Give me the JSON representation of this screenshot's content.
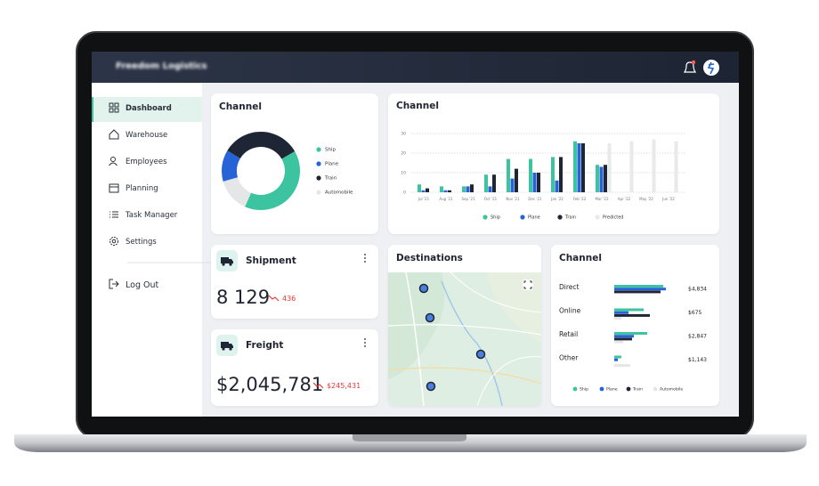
{
  "header": {
    "title": "Freedom Logistics"
  },
  "nav": {
    "items": [
      "Dashboard",
      "Warehouse",
      "Employees",
      "Planning",
      "Task Manager",
      "Settings"
    ],
    "logout": "Log Out"
  },
  "cards": {
    "shipment": {
      "title": "Shipment",
      "value": "8 129",
      "change": "436"
    },
    "freight": {
      "title": "Freight",
      "value": "$2,045,781",
      "change": "$245,431"
    },
    "destinations": {
      "title": "Destinations"
    }
  },
  "donut": {
    "type": "pie",
    "title": "Channel",
    "categories": [
      "Ship",
      "Plane",
      "Train",
      "Automobile"
    ],
    "values": [
      40,
      13,
      33,
      14
    ],
    "colors": [
      "#3cc3a0",
      "#2563d6",
      "#1e2535",
      "#e4e6e8"
    ]
  },
  "bar": {
    "type": "bar",
    "title": "Channel",
    "categories": [
      "Jul '21",
      "Aug '21",
      "Sep '21",
      "Oct '21",
      "Nov '21",
      "Dec '21",
      "Jan '22",
      "Feb '22",
      "Mar '22",
      "Apr '22",
      "May '22",
      "Jun '22"
    ],
    "series": [
      {
        "name": "Ship",
        "color": "#3cc3a0",
        "values": [
          4,
          3,
          3,
          9,
          17,
          17,
          18,
          26,
          14,
          null,
          null,
          null
        ]
      },
      {
        "name": "Plane",
        "color": "#2563d6",
        "values": [
          1,
          1,
          3,
          3,
          7,
          10,
          6,
          25,
          13,
          null,
          null,
          null
        ]
      },
      {
        "name": "Train",
        "color": "#1e2535",
        "values": [
          2,
          1,
          4,
          9,
          12,
          10,
          18,
          25,
          14,
          null,
          null,
          null
        ]
      },
      {
        "name": "Predicted",
        "color": "#e8e9eb",
        "values": [
          null,
          null,
          null,
          null,
          null,
          null,
          null,
          null,
          25,
          26,
          27,
          26
        ]
      }
    ],
    "ylim": [
      0,
      33
    ],
    "yticks": [
      0,
      10,
      20,
      30
    ],
    "grid": true
  },
  "hbar": {
    "type": "hbar",
    "title": "Channel",
    "categories": [
      "Direct",
      "Online",
      "Retail",
      "Other"
    ],
    "values": [
      4834,
      675,
      2847,
      1143
    ],
    "value_labels": [
      "$4,834",
      "$675",
      "$2,847",
      "$1,143"
    ],
    "series": [
      {
        "name": "Ship",
        "color": "#3cc3a0",
        "values": [
          55,
          33,
          37,
          8
        ]
      },
      {
        "name": "Plane",
        "color": "#2563d6",
        "values": [
          58,
          16,
          22,
          4
        ]
      },
      {
        "name": "Train",
        "color": "#1e2535",
        "values": [
          52,
          40,
          20,
          0
        ]
      },
      {
        "name": "Automobile",
        "color": "#e4e6e8",
        "values": [
          0,
          8,
          10,
          18
        ]
      }
    ]
  }
}
